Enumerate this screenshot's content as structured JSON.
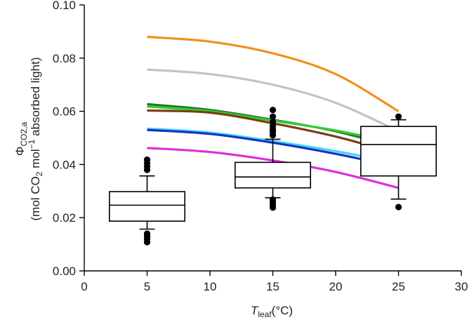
{
  "chart_data": {
    "type": "line+boxplot",
    "xlabel": {
      "symbol": "T",
      "subscript": "leaf",
      "unit": "(°C)"
    },
    "ylabel": {
      "symbol": "Φ",
      "subscript": "CO2,a",
      "line2_a": "(mol CO",
      "line2_sub": "2",
      "line2_b": " mol",
      "line2_sup": "−1",
      "line2_c": " absorbed light)"
    },
    "xlim": [
      0,
      30
    ],
    "ylim": [
      0,
      0.1
    ],
    "x_ticks": [
      0,
      5,
      10,
      15,
      20,
      25,
      30
    ],
    "y_ticks": [
      0.0,
      0.02,
      0.04,
      0.06,
      0.08,
      0.1
    ],
    "y_tick_labels": [
      "0.00",
      "0.02",
      "0.04",
      "0.06",
      "0.08",
      "0.10"
    ],
    "series": [
      {
        "name": "orange",
        "color": "#f0901e",
        "x": [
          5,
          10,
          15,
          20,
          25
        ],
        "values": [
          0.088,
          0.0862,
          0.0818,
          0.074,
          0.06
        ]
      },
      {
        "name": "gray",
        "color": "#c3c3c3",
        "x": [
          5,
          10,
          15,
          20,
          25
        ],
        "values": [
          0.0757,
          0.074,
          0.07,
          0.0632,
          0.0525
        ]
      },
      {
        "name": "dark green",
        "color": "#217a21",
        "x": [
          5,
          10,
          15,
          20,
          25
        ],
        "values": [
          0.0627,
          0.0605,
          0.0568,
          0.0525,
          0.0462
        ]
      },
      {
        "name": "light green",
        "color": "#33cc33",
        "x": [
          5,
          10,
          15,
          20,
          25
        ],
        "values": [
          0.0618,
          0.06,
          0.0565,
          0.0528,
          0.048
        ]
      },
      {
        "name": "brown",
        "color": "#7a3d12",
        "x": [
          5,
          10,
          15,
          20,
          25
        ],
        "values": [
          0.0603,
          0.0595,
          0.0555,
          0.0505,
          0.044
        ]
      },
      {
        "name": "cyan",
        "color": "#43d8ee",
        "x": [
          5,
          10,
          15,
          20,
          25
        ],
        "values": [
          0.0535,
          0.052,
          0.0488,
          0.045,
          0.0405
        ]
      },
      {
        "name": "blue",
        "color": "#1433c2",
        "x": [
          5,
          10,
          15,
          20,
          25
        ],
        "values": [
          0.053,
          0.0515,
          0.0482,
          0.044,
          0.039
        ]
      },
      {
        "name": "magenta",
        "color": "#dd2edd",
        "x": [
          5,
          10,
          15,
          20,
          25
        ],
        "values": [
          0.0462,
          0.0447,
          0.0415,
          0.0372,
          0.0312
        ]
      }
    ],
    "boxplots": [
      {
        "x": 5,
        "q1": 0.0187,
        "median": 0.0247,
        "q3": 0.0298,
        "whisker_low": 0.0157,
        "whisker_high": 0.0357,
        "outliers": [
          0.0108,
          0.012,
          0.013,
          0.014,
          0.038,
          0.0392,
          0.0405,
          0.0418
        ]
      },
      {
        "x": 15,
        "q1": 0.0312,
        "median": 0.0353,
        "q3": 0.0408,
        "whisker_low": 0.0275,
        "whisker_high": 0.0495,
        "outliers": [
          0.0238,
          0.0248,
          0.0258,
          0.0268,
          0.051,
          0.0522,
          0.0532,
          0.0545,
          0.056,
          0.058,
          0.0605
        ]
      },
      {
        "x": 25,
        "q1": 0.0357,
        "median": 0.0475,
        "q3": 0.0543,
        "whisker_low": 0.027,
        "whisker_high": 0.0568,
        "outliers": [
          0.024,
          0.058
        ]
      }
    ],
    "box_half_width": 3,
    "grid": false,
    "legend": "none"
  }
}
